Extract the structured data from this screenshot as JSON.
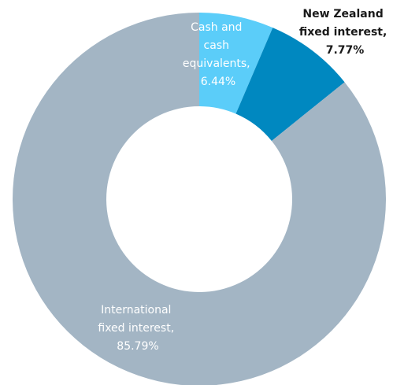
{
  "chart_data": {
    "type": "pie",
    "donut": true,
    "slices": [
      {
        "label": [
          "Cash and",
          "cash",
          "equivalents,",
          "6.44%"
        ],
        "value": 6.44,
        "color": "#5bcdf9"
      },
      {
        "label": [
          "New Zealand",
          "fixed interest,",
          "7.77%"
        ],
        "value": 7.77,
        "color": "#0088c0"
      },
      {
        "label": [
          "International",
          "fixed interest,",
          "85.79%"
        ],
        "value": 85.79,
        "color": "#a3b5c4"
      }
    ],
    "legend": "none"
  }
}
